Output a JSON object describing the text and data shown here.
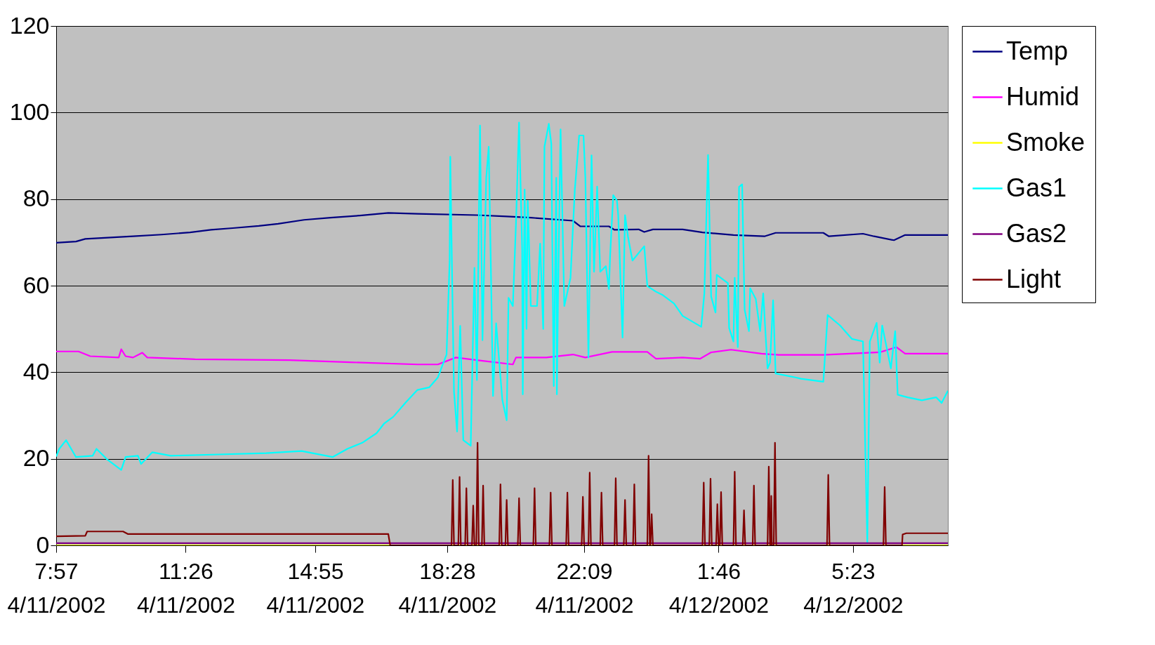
{
  "chart_data": {
    "type": "line",
    "xlim": [
      "2002-04-11T07:57",
      "2002-04-12T07:56"
    ],
    "xticks": [
      {
        "value": "2002-04-11T07:57",
        "label": "7:57\n4/11/2002"
      },
      {
        "value": "2002-04-11T11:26",
        "label": "11:26\n4/11/2002"
      },
      {
        "value": "2002-04-11T14:55",
        "label": "14:55\n4/11/2002"
      },
      {
        "value": "2002-04-11T18:28",
        "label": "18:28\n4/11/2002"
      },
      {
        "value": "2002-04-11T22:09",
        "label": "22:09\n4/11/2002"
      },
      {
        "value": "2002-04-12T01:46",
        "label": "1:46\n4/12/2002"
      },
      {
        "value": "2002-04-12T05:23",
        "label": "5:23\n4/12/2002"
      }
    ],
    "ylim": [
      0,
      120
    ],
    "yticks": [
      0,
      20,
      40,
      60,
      80,
      100,
      120
    ],
    "grid": "y",
    "legend": "right",
    "marker": "none",
    "line_style": "solid",
    "series": [
      {
        "name": "Temp",
        "color": "#000080",
        "x": [
          "2002-04-11T07:57",
          "2002-04-11T08:29",
          "2002-04-11T08:44",
          "2002-04-11T10:01",
          "2002-04-11T10:47",
          "2002-04-11T11:33",
          "2002-04-11T12:07",
          "2002-04-11T12:42",
          "2002-04-11T13:24",
          "2002-04-11T13:55",
          "2002-04-11T14:37",
          "2002-04-11T15:20",
          "2002-04-11T16:07",
          "2002-04-11T16:53",
          "2002-04-11T17:40",
          "2002-04-11T19:16",
          "2002-04-11T20:04",
          "2002-04-11T20:43",
          "2002-04-11T21:51",
          "2002-04-11T22:03",
          "2002-04-11T22:49",
          "2002-04-11T22:58",
          "2002-04-11T23:37",
          "2002-04-11T23:46",
          "2002-04-12T00:00",
          "2002-04-12T00:48",
          "2002-04-12T01:20",
          "2002-04-12T02:10",
          "2002-04-12T03:00",
          "2002-04-12T03:18",
          "2002-04-12T04:35",
          "2002-04-12T04:44",
          "2002-04-12T05:39",
          "2002-04-12T05:57",
          "2002-04-12T06:29",
          "2002-04-12T06:47",
          "2002-04-12T07:56"
        ],
        "values": [
          69.9,
          70.2,
          70.8,
          71.4,
          71.8,
          72.3,
          72.9,
          73.3,
          73.8,
          74.3,
          75.2,
          75.7,
          76.2,
          76.8,
          76.6,
          76.3,
          76.0,
          75.7,
          75.0,
          73.7,
          73.7,
          72.9,
          73.0,
          72.4,
          73.0,
          73.0,
          72.3,
          71.7,
          71.4,
          72.2,
          72.2,
          71.4,
          72.0,
          71.4,
          70.5,
          71.7,
          71.7
        ]
      },
      {
        "name": "Humid",
        "color": "#ff00ff",
        "x": [
          "2002-04-11T07:57",
          "2002-04-11T08:33",
          "2002-04-11T08:52",
          "2002-04-11T09:38",
          "2002-04-11T09:42",
          "2002-04-11T09:49",
          "2002-04-11T10:01",
          "2002-04-11T10:16",
          "2002-04-11T10:24",
          "2002-04-11T11:41",
          "2002-04-11T14:14",
          "2002-04-11T15:51",
          "2002-04-11T17:40",
          "2002-04-11T18:13",
          "2002-04-11T18:42",
          "2002-04-11T19:16",
          "2002-04-11T20:14",
          "2002-04-11T20:19",
          "2002-04-11T21:08",
          "2002-04-11T21:51",
          "2002-04-11T22:11",
          "2002-04-11T22:54",
          "2002-04-11T23:51",
          "2002-04-12T00:05",
          "2002-04-12T00:48",
          "2002-04-12T01:16",
          "2002-04-12T01:34",
          "2002-04-12T02:06",
          "2002-04-12T02:55",
          "2002-04-12T03:23",
          "2002-04-12T04:35",
          "2002-04-12T06:06",
          "2002-04-12T06:33",
          "2002-04-12T06:47",
          "2002-04-12T07:56"
        ],
        "values": [
          44.8,
          44.8,
          43.7,
          43.4,
          45.3,
          43.7,
          43.4,
          44.5,
          43.4,
          43.0,
          42.8,
          42.3,
          41.8,
          41.8,
          43.4,
          42.8,
          41.8,
          43.4,
          43.4,
          44.1,
          43.4,
          44.7,
          44.7,
          43.1,
          43.4,
          43.1,
          44.6,
          45.2,
          44.3,
          44.0,
          44.0,
          44.6,
          45.8,
          44.3,
          44.3
        ]
      },
      {
        "name": "Smoke",
        "color": "#ffff00",
        "x": [
          "2002-04-11T07:57",
          "2002-04-12T07:56"
        ],
        "values": [
          0,
          0
        ]
      },
      {
        "name": "Gas1",
        "color": "#00ffff",
        "x": [
          "2002-04-11T07:57",
          "2002-04-11T08:02",
          "2002-04-11T08:13",
          "2002-04-11T08:29",
          "2002-04-11T08:56",
          "2002-04-11T09:02",
          "2002-04-11T09:19",
          "2002-04-11T09:42",
          "2002-04-11T09:49",
          "2002-04-11T10:09",
          "2002-04-11T10:14",
          "2002-04-11T10:32",
          "2002-04-11T11:02",
          "2002-04-11T12:19",
          "2002-04-11T13:36",
          "2002-04-11T14:33",
          "2002-04-11T15:23",
          "2002-04-11T15:47",
          "2002-04-11T16:11",
          "2002-04-11T16:34",
          "2002-04-11T16:46",
          "2002-04-11T17:01",
          "2002-04-11T17:21",
          "2002-04-11T17:40",
          "2002-04-11T17:59",
          "2002-04-11T18:13",
          "2002-04-11T18:27",
          "2002-04-11T18:32",
          "2002-04-11T18:33",
          "2002-04-11T18:36",
          "2002-04-11T18:39",
          "2002-04-11T18:44",
          "2002-04-11T18:49",
          "2002-04-11T18:54",
          "2002-04-11T19:06",
          "2002-04-11T19:12",
          "2002-04-11T19:16",
          "2002-04-11T19:21",
          "2002-04-11T19:25",
          "2002-04-11T19:31",
          "2002-04-11T19:35",
          "2002-04-11T19:38",
          "2002-04-11T19:42",
          "2002-04-11T19:47",
          "2002-04-11T19:57",
          "2002-04-11T20:04",
          "2002-04-11T20:07",
          "2002-04-11T20:14",
          "2002-04-11T20:19",
          "2002-04-11T20:24",
          "2002-04-11T20:29",
          "2002-04-11T20:30",
          "2002-04-11T20:33",
          "2002-04-11T20:36",
          "2002-04-11T20:38",
          "2002-04-11T20:43",
          "2002-04-11T20:53",
          "2002-04-11T20:58",
          "2002-04-11T21:03",
          "2002-04-11T21:05",
          "2002-04-11T21:12",
          "2002-04-11T21:16",
          "2002-04-11T21:20",
          "2002-04-11T21:24",
          "2002-04-11T21:25",
          "2002-04-11T21:27",
          "2002-04-11T21:31",
          "2002-04-11T21:37",
          "2002-04-11T21:47",
          "2002-04-11T21:54",
          "2002-04-11T22:01",
          "2002-04-11T22:08",
          "2002-04-11T22:11",
          "2002-04-11T22:16",
          "2002-04-11T22:21",
          "2002-04-11T22:25",
          "2002-04-11T22:30",
          "2002-04-11T22:35",
          "2002-04-11T22:44",
          "2002-04-11T22:49",
          "2002-04-11T22:51",
          "2002-04-11T22:56",
          "2002-04-11T23:02",
          "2002-04-11T23:04",
          "2002-04-11T23:11",
          "2002-04-11T23:15",
          "2002-04-11T23:20",
          "2002-04-11T23:27",
          "2002-04-11T23:46",
          "2002-04-11T23:51",
          "2002-04-12T00:05",
          "2002-04-12T00:15",
          "2002-04-12T00:34",
          "2002-04-12T00:48",
          "2002-04-12T01:18",
          "2002-04-12T01:23",
          "2002-04-12T01:29",
          "2002-04-12T01:34",
          "2002-04-12T01:41",
          "2002-04-12T01:43",
          "2002-04-12T02:01",
          "2002-04-12T02:03",
          "2002-04-12T02:10",
          "2002-04-12T02:12",
          "2002-04-12T02:17",
          "2002-04-12T02:19",
          "2002-04-12T02:24",
          "2002-04-12T02:28",
          "2002-04-12T02:35",
          "2002-04-12T02:37",
          "2002-04-12T02:46",
          "2002-04-12T02:53",
          "2002-04-12T02:58",
          "2002-04-12T03:05",
          "2002-04-12T03:09",
          "2002-04-12T03:14",
          "2002-04-12T03:18",
          "2002-04-12T03:50",
          "2002-04-12T03:59",
          "2002-04-12T04:35",
          "2002-04-12T04:42",
          "2002-04-12T05:02",
          "2002-04-12T05:21",
          "2002-04-12T05:39",
          "2002-04-12T05:46",
          "2002-04-12T05:50",
          "2002-04-12T06:01",
          "2002-04-12T06:06",
          "2002-04-12T06:10",
          "2002-04-12T06:24",
          "2002-04-12T06:31",
          "2002-04-12T06:35",
          "2002-04-12T06:51",
          "2002-04-12T07:14",
          "2002-04-12T07:37",
          "2002-04-12T07:46",
          "2002-04-12T07:56"
        ],
        "values": [
          20.5,
          22.3,
          24.3,
          20.4,
          20.7,
          22.3,
          19.9,
          17.4,
          20.4,
          20.7,
          18.8,
          21.5,
          20.7,
          21.0,
          21.3,
          21.8,
          20.4,
          22.3,
          23.7,
          25.9,
          28.1,
          29.7,
          33.0,
          35.9,
          36.5,
          38.8,
          44.1,
          65.8,
          89.8,
          61.8,
          35.5,
          26.3,
          50.7,
          24.3,
          23.0,
          64.1,
          38.2,
          97.0,
          47.4,
          84.9,
          92.1,
          68.4,
          34.5,
          51.3,
          33.6,
          28.9,
          57.2,
          55.3,
          74.3,
          97.7,
          68.4,
          34.9,
          82.2,
          50.0,
          79.6,
          55.3,
          55.3,
          69.7,
          50.0,
          92.1,
          97.4,
          92.8,
          36.8,
          84.9,
          34.9,
          58.6,
          96.1,
          55.3,
          61.8,
          82.2,
          94.7,
          94.7,
          84.9,
          43.4,
          90.1,
          63.2,
          82.9,
          63.2,
          64.5,
          59.2,
          67.1,
          80.9,
          79.6,
          76.3,
          48.0,
          76.3,
          71.1,
          65.8,
          69.1,
          59.9,
          58.6,
          57.9,
          55.9,
          53.0,
          50.5,
          58.2,
          90.2,
          57.5,
          53.8,
          62.5,
          60.6,
          50.2,
          47.1,
          61.8,
          45.8,
          82.8,
          83.4,
          54.5,
          49.5,
          59.4,
          56.9,
          49.5,
          58.2,
          40.9,
          42.2,
          56.6,
          39.7,
          38.8,
          38.5,
          37.8,
          53.2,
          50.8,
          47.7,
          47.1,
          0.6,
          47.1,
          51.4,
          42.2,
          50.8,
          40.9,
          49.5,
          34.8,
          34.2,
          33.5,
          34.2,
          32.9,
          35.7
        ]
      },
      {
        "name": "Gas2",
        "color": "#800080",
        "x": [
          "2002-04-11T07:57",
          "2002-04-12T07:56"
        ],
        "values": [
          0.5,
          0.5
        ]
      },
      {
        "name": "Light",
        "color": "#800000",
        "x": [
          "2002-04-11T07:57",
          "2002-04-11T08:44",
          "2002-04-11T08:47",
          "2002-04-11T09:45",
          "2002-04-11T09:53",
          "2002-04-11T16:53",
          "2002-04-11T16:56",
          "2002-04-11T18:35",
          "2002-04-11T18:37",
          "2002-04-11T18:39",
          "2002-04-11T18:46",
          "2002-04-11T18:48",
          "2002-04-11T18:50",
          "2002-04-11T18:57",
          "2002-04-11T18:59",
          "2002-04-11T19:01",
          "2002-04-11T19:08",
          "2002-04-11T19:10",
          "2002-04-11T19:12",
          "2002-04-11T19:15",
          "2002-04-11T19:17",
          "2002-04-11T19:19",
          "2002-04-11T19:24",
          "2002-04-11T19:26",
          "2002-04-11T19:28",
          "2002-04-11T19:52",
          "2002-04-11T19:54",
          "2002-04-11T19:56",
          "2002-04-11T20:02",
          "2002-04-11T20:04",
          "2002-04-11T20:06",
          "2002-04-11T20:22",
          "2002-04-11T20:24",
          "2002-04-11T20:26",
          "2002-04-11T20:47",
          "2002-04-11T20:49",
          "2002-04-11T20:51",
          "2002-04-11T21:13",
          "2002-04-11T21:15",
          "2002-04-11T21:17",
          "2002-04-11T21:40",
          "2002-04-11T21:42",
          "2002-04-11T21:44",
          "2002-04-11T22:05",
          "2002-04-11T22:07",
          "2002-04-11T22:09",
          "2002-04-11T22:16",
          "2002-04-11T22:18",
          "2002-04-11T22:20",
          "2002-04-11T22:35",
          "2002-04-11T22:37",
          "2002-04-11T22:39",
          "2002-04-11T22:58",
          "2002-04-11T23:00",
          "2002-04-11T23:02",
          "2002-04-11T23:13",
          "2002-04-11T23:15",
          "2002-04-11T23:17",
          "2002-04-11T23:28",
          "2002-04-11T23:30",
          "2002-04-11T23:32",
          "2002-04-11T23:51",
          "2002-04-11T23:53",
          "2002-04-11T23:55",
          "2002-04-11T23:56",
          "2002-04-11T23:58",
          "2002-04-12T00:00",
          "2002-04-12T01:20",
          "2002-04-12T01:22",
          "2002-04-12T01:24",
          "2002-04-12T01:31",
          "2002-04-12T01:33",
          "2002-04-12T01:35",
          "2002-04-12T01:42",
          "2002-04-12T01:44",
          "2002-04-12T01:46",
          "2002-04-12T01:48",
          "2002-04-12T01:50",
          "2002-04-12T01:52",
          "2002-04-12T02:10",
          "2002-04-12T02:12",
          "2002-04-12T02:14",
          "2002-04-12T02:25",
          "2002-04-12T02:27",
          "2002-04-12T02:29",
          "2002-04-12T02:41",
          "2002-04-12T02:43",
          "2002-04-12T02:45",
          "2002-04-12T03:05",
          "2002-04-12T03:07",
          "2002-04-12T03:09",
          "2002-04-12T03:10",
          "2002-04-12T03:11",
          "2002-04-12T03:12",
          "2002-04-12T03:15",
          "2002-04-12T03:17",
          "2002-04-12T03:19",
          "2002-04-12T04:41",
          "2002-04-12T04:43",
          "2002-04-12T04:45",
          "2002-04-12T06:12",
          "2002-04-12T06:14",
          "2002-04-12T06:16",
          "2002-04-12T06:42",
          "2002-04-12T06:43",
          "2002-04-12T06:49",
          "2002-04-12T07:56"
        ],
        "values": [
          2.1,
          2.2,
          3.2,
          3.2,
          2.6,
          2.6,
          0,
          0,
          15.1,
          0,
          0,
          15.8,
          0,
          0,
          13.2,
          0,
          0,
          9.2,
          0,
          0,
          23.7,
          0,
          0,
          13.8,
          0,
          0,
          14.1,
          0,
          0,
          10.5,
          0,
          0,
          10.9,
          0,
          0,
          13.2,
          0,
          0,
          12.2,
          0,
          0,
          12.2,
          0,
          0,
          11.2,
          0,
          0,
          16.8,
          0,
          0,
          12.2,
          0,
          0,
          15.5,
          0,
          0,
          10.5,
          0,
          0,
          14.1,
          0,
          0,
          20.7,
          0,
          0,
          7.2,
          0,
          0,
          14.5,
          0,
          0,
          15.4,
          0,
          0,
          9.5,
          0,
          0,
          12.3,
          0,
          0,
          17.0,
          0,
          0,
          8.1,
          0,
          0,
          13.8,
          0,
          0,
          18.2,
          0,
          0,
          11.4,
          0,
          0,
          23.7,
          0,
          0,
          16.3,
          0,
          0,
          13.5,
          0,
          0,
          2.5,
          2.8,
          2.8
        ]
      }
    ]
  }
}
